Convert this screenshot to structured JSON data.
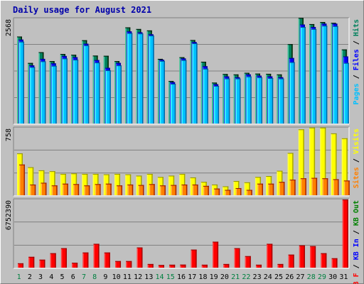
{
  "title": "Daily usage for August 2021",
  "colors": {
    "background": "#c0c0c0",
    "panel": "#c0c0c0",
    "grid": "#808080",
    "hits": "#00805c",
    "files": "#0000ff",
    "pages": "#00c0ff",
    "visits": "#ffff00",
    "sites": "#ff8000",
    "kbin": "#0000ff",
    "kbout": "#008000",
    "kbf": "#ff0000",
    "weekday_label": "#000000",
    "weekend_label": "#008040"
  },
  "chart_data": [
    {
      "type": "bar",
      "title": "Daily usage for August 2021",
      "y_max_label": "2568",
      "right_label": [
        {
          "text": "Pages",
          "color": "#00c0ff"
        },
        {
          "text": "Files",
          "color": "#0000ff"
        },
        {
          "text": "Hits",
          "color": "#00805c"
        }
      ],
      "ylim": [
        0,
        2568
      ],
      "categories": [
        "1",
        "2",
        "3",
        "4",
        "5",
        "6",
        "7",
        "8",
        "9",
        "10",
        "11",
        "12",
        "13",
        "14",
        "15",
        "16",
        "17",
        "18",
        "19",
        "20",
        "21",
        "22",
        "23",
        "24",
        "25",
        "26",
        "27",
        "28",
        "29",
        "30",
        "31"
      ],
      "weekend_days": [
        1,
        7,
        8,
        14,
        15,
        21,
        22,
        28,
        29
      ],
      "series": [
        {
          "name": "Hits",
          "color": "#00805c",
          "values": [
            2126,
            1480,
            1744,
            1525,
            1700,
            1680,
            2035,
            1660,
            1655,
            1525,
            2350,
            2310,
            2275,
            1580,
            1040,
            1620,
            2040,
            1510,
            1000,
            1210,
            1200,
            1240,
            1220,
            1215,
            1200,
            1940,
            2580,
            2430,
            2480,
            2460,
            1810
          ]
        },
        {
          "name": "Files",
          "color": "#0000ff",
          "values": [
            2050,
            1420,
            1580,
            1470,
            1650,
            1620,
            1950,
            1550,
            1360,
            1480,
            2250,
            2230,
            2180,
            1560,
            1010,
            1590,
            1990,
            1400,
            960,
            1150,
            1130,
            1200,
            1170,
            1150,
            1130,
            1600,
            2420,
            2360,
            2440,
            2440,
            1640
          ]
        },
        {
          "name": "Pages",
          "color": "#00c0ff",
          "values": [
            2000,
            1380,
            1520,
            1410,
            1590,
            1560,
            1910,
            1490,
            1300,
            1420,
            2210,
            2200,
            2150,
            1530,
            970,
            1550,
            1960,
            1340,
            920,
            1100,
            1100,
            1150,
            1130,
            1110,
            1100,
            1500,
            2360,
            2310,
            2390,
            2380,
            1480
          ]
        }
      ]
    },
    {
      "type": "bar",
      "y_max_label": "758",
      "right_label": [
        {
          "text": "Sites",
          "color": "#ff8000"
        },
        {
          "text": "Visits",
          "color": "#ffff00"
        }
      ],
      "ylim": [
        0,
        758
      ],
      "categories": [
        "1",
        "2",
        "3",
        "4",
        "5",
        "6",
        "7",
        "8",
        "9",
        "10",
        "11",
        "12",
        "13",
        "14",
        "15",
        "16",
        "17",
        "18",
        "19",
        "20",
        "21",
        "22",
        "23",
        "24",
        "25",
        "26",
        "27",
        "28",
        "29",
        "30",
        "31"
      ],
      "series": [
        {
          "name": "Visits",
          "color": "#ffff00",
          "values": [
            470,
            315,
            280,
            270,
            240,
            245,
            240,
            240,
            235,
            240,
            235,
            220,
            240,
            205,
            220,
            240,
            200,
            150,
            120,
            100,
            160,
            145,
            205,
            215,
            275,
            475,
            740,
            760,
            760,
            695,
            640
          ]
        },
        {
          "name": "Sites",
          "color": "#ff8000",
          "values": [
            345,
            120,
            140,
            110,
            130,
            125,
            110,
            125,
            130,
            110,
            120,
            115,
            125,
            110,
            115,
            120,
            120,
            105,
            75,
            60,
            80,
            60,
            130,
            130,
            150,
            175,
            190,
            195,
            190,
            180,
            165
          ]
        }
      ]
    },
    {
      "type": "bar",
      "y_max_label": "6752390",
      "right_label": [
        {
          "text": "KB F",
          "color": "#ff0000"
        },
        {
          "text": "KB In",
          "color": "#0000ff"
        },
        {
          "text": "KB Out",
          "color": "#008000"
        }
      ],
      "ylim": [
        0,
        6752390
      ],
      "categories": [
        "1",
        "2",
        "3",
        "4",
        "5",
        "6",
        "7",
        "8",
        "9",
        "10",
        "11",
        "12",
        "13",
        "14",
        "15",
        "16",
        "17",
        "18",
        "19",
        "20",
        "21",
        "22",
        "23",
        "24",
        "25",
        "26",
        "27",
        "28",
        "29",
        "30",
        "31"
      ],
      "series": [
        {
          "name": "KB F",
          "color": "#ff0000",
          "values": [
            430000,
            1070000,
            790000,
            1430000,
            1930000,
            490000,
            1500000,
            2360000,
            1500000,
            650000,
            650000,
            2000000,
            360000,
            260000,
            290000,
            300000,
            1790000,
            290000,
            2570000,
            360000,
            1930000,
            1140000,
            290000,
            2360000,
            360000,
            1290000,
            2210000,
            2140000,
            1430000,
            930000,
            6752390
          ]
        }
      ]
    }
  ]
}
